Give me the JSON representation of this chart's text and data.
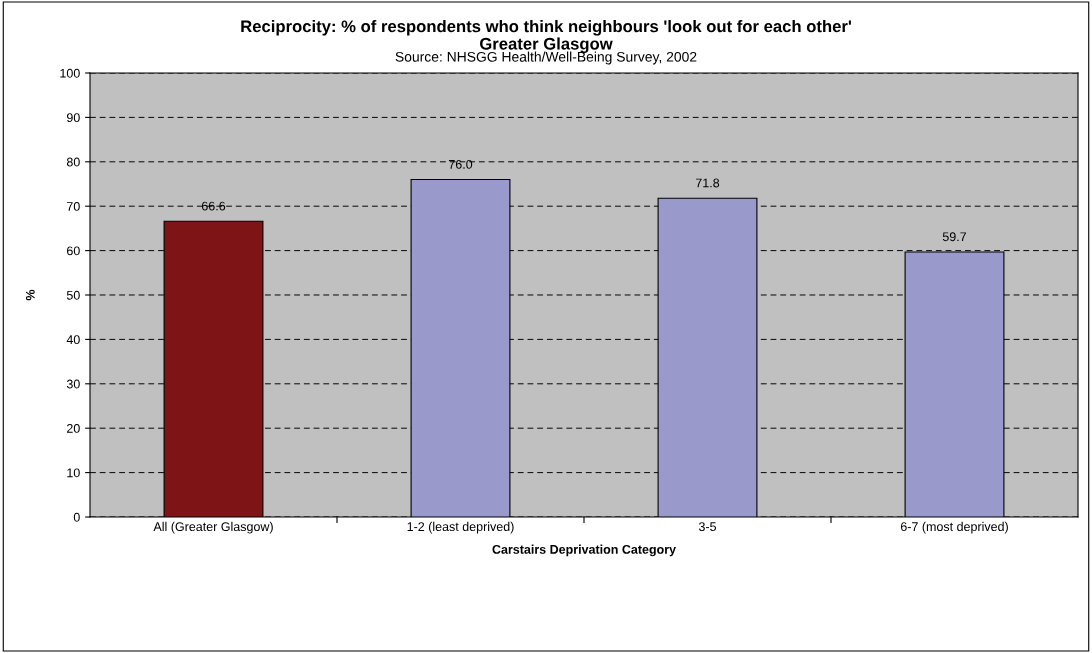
{
  "chart_data": {
    "type": "bar",
    "title": "Reciprocity: % of respondents who think neighbours 'look out for each other'\nGreater Glasgow",
    "subtitle": "Source: NHSGG Health/Well-Being Survey, 2002",
    "xlabel": "Carstairs Deprivation Category",
    "ylabel": "%",
    "categories": [
      "All (Greater Glasgow)",
      "1-2 (least deprived)",
      "3-5",
      "6-7 (most deprived)"
    ],
    "values": [
      66.6,
      76.0,
      71.8,
      59.7
    ],
    "value_labels": [
      "66.6",
      "76.0",
      "71.8",
      "59.7"
    ],
    "colors": [
      "#7f1416",
      "#9999cc",
      "#9999cc",
      "#9999cc"
    ],
    "ylim": [
      0,
      100
    ],
    "yticks": [
      0,
      10,
      20,
      30,
      40,
      50,
      60,
      70,
      80,
      90,
      100
    ],
    "grid": "y"
  }
}
